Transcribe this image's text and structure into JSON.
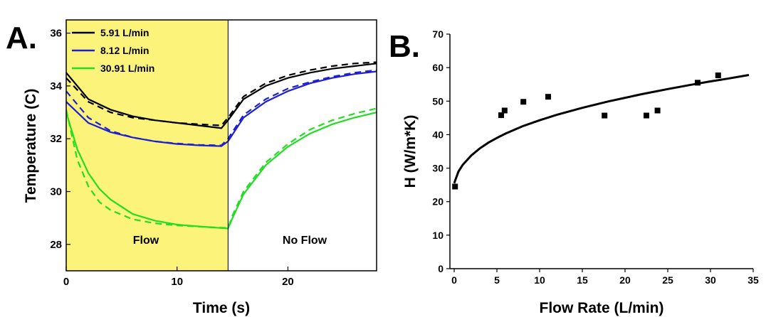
{
  "chart_data": [
    {
      "panel_label": "A.",
      "type": "line",
      "xlabel": "Time (s)",
      "ylabel": "Temperature (C)",
      "xlim": [
        0,
        28
      ],
      "ylim": [
        27,
        36.5
      ],
      "x_ticks": [
        0,
        10,
        20
      ],
      "y_ticks": [
        28,
        30,
        32,
        34,
        36
      ],
      "shaded_region": {
        "x_start": 0,
        "x_end": 14.6,
        "color": "#fbf37a",
        "label": "Flow"
      },
      "unshaded_label": "No Flow",
      "legend_position": "top-left",
      "series": [
        {
          "name": "5.91 L/min",
          "color": "#000000",
          "style": "solid",
          "x": [
            0,
            2,
            4,
            6,
            8,
            10,
            12,
            14,
            14.6,
            16,
            18,
            20,
            22,
            24,
            26,
            28
          ],
          "y": [
            34.5,
            33.5,
            33.1,
            32.85,
            32.7,
            32.6,
            32.5,
            32.4,
            32.7,
            33.5,
            34.0,
            34.3,
            34.5,
            34.65,
            34.75,
            34.85
          ]
        },
        {
          "name": "5.91 L/min model",
          "color": "#000000",
          "style": "dashed",
          "x": [
            0,
            2,
            4,
            6,
            8,
            10,
            12,
            14,
            14.6,
            16,
            18,
            20,
            22,
            24,
            26,
            28
          ],
          "y": [
            34.3,
            33.4,
            33.0,
            32.8,
            32.7,
            32.6,
            32.55,
            32.5,
            32.8,
            33.6,
            34.1,
            34.4,
            34.6,
            34.75,
            34.85,
            34.9
          ]
        },
        {
          "name": "8.12 L/min",
          "color": "#1f1fd0",
          "style": "solid",
          "x": [
            0,
            2,
            4,
            6,
            8,
            10,
            12,
            14,
            14.6,
            16,
            18,
            20,
            22,
            24,
            26,
            28
          ],
          "y": [
            33.4,
            32.6,
            32.25,
            32.05,
            31.9,
            31.8,
            31.75,
            31.72,
            31.9,
            32.8,
            33.4,
            33.8,
            34.1,
            34.3,
            34.45,
            34.55
          ]
        },
        {
          "name": "8.12 L/min model",
          "color": "#1f1fd0",
          "style": "dashed",
          "x": [
            0,
            2,
            4,
            6,
            8,
            10,
            12,
            14,
            14.6,
            16,
            18,
            20,
            22,
            24,
            26,
            28
          ],
          "y": [
            33.8,
            32.8,
            32.3,
            32.05,
            31.9,
            31.82,
            31.77,
            31.75,
            32.0,
            32.9,
            33.5,
            33.9,
            34.15,
            34.35,
            34.5,
            34.6
          ]
        },
        {
          "name": "30.91 L/min",
          "color": "#22dd22",
          "style": "solid",
          "x": [
            0,
            1,
            2,
            3,
            4,
            6,
            8,
            10,
            12,
            14,
            14.6,
            15,
            16,
            18,
            20,
            22,
            24,
            26,
            28
          ],
          "y": [
            33.0,
            31.6,
            30.7,
            30.1,
            29.7,
            29.15,
            28.9,
            28.75,
            28.68,
            28.62,
            28.6,
            29.0,
            29.9,
            31.0,
            31.7,
            32.2,
            32.55,
            32.8,
            33.0
          ],
          "y_note": ""
        },
        {
          "name": "30.91 L/min model",
          "color": "#22dd22",
          "style": "dashed",
          "x": [
            0,
            1,
            2,
            3,
            4,
            6,
            8,
            10,
            12,
            14,
            14.6,
            15,
            16,
            18,
            20,
            22,
            24,
            26,
            28
          ],
          "y": [
            33.1,
            31.2,
            30.2,
            29.6,
            29.3,
            28.95,
            28.8,
            28.72,
            28.67,
            28.63,
            28.62,
            29.1,
            30.0,
            31.1,
            31.8,
            32.35,
            32.7,
            32.95,
            33.15
          ]
        }
      ]
    },
    {
      "panel_label": "B.",
      "type": "scatter",
      "xlabel": "Flow Rate (L/min)",
      "ylabel": "H (W/m*K)",
      "xlim": [
        -0.5,
        35
      ],
      "ylim": [
        0,
        70
      ],
      "x_ticks": [
        0,
        5,
        10,
        15,
        20,
        25,
        30,
        35
      ],
      "y_ticks": [
        0,
        10,
        20,
        30,
        40,
        50,
        60,
        70
      ],
      "points": {
        "x": [
          0.1,
          5.5,
          5.9,
          8.1,
          11.0,
          17.6,
          22.5,
          23.8,
          28.5,
          30.9
        ],
        "y": [
          24.5,
          45.8,
          47.2,
          49.8,
          51.3,
          45.7,
          45.7,
          47.2,
          55.5,
          57.7
        ],
        "color": "#000000"
      },
      "fit_curve": {
        "x": [
          0,
          0.5,
          1,
          2,
          3,
          4,
          5,
          6,
          8,
          10,
          12,
          15,
          18,
          20,
          22,
          25,
          28,
          30,
          32,
          34.5
        ],
        "y": [
          25.5,
          29.0,
          31.0,
          33.8,
          35.9,
          37.6,
          39.0,
          40.3,
          42.5,
          44.3,
          45.9,
          48.0,
          49.9,
          51.0,
          52.1,
          53.6,
          55.0,
          55.9,
          56.7,
          57.8
        ],
        "color": "#000000"
      }
    }
  ]
}
